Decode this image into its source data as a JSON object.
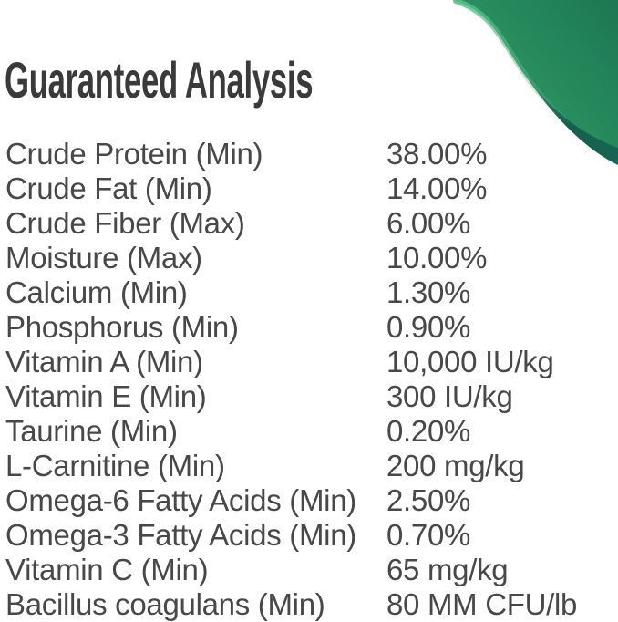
{
  "header": {
    "title": "Guaranteed Analysis"
  },
  "analysis": {
    "rows": [
      {
        "label": "Crude Protein (Min)",
        "value": "38.00%"
      },
      {
        "label": "Crude Fat (Min)",
        "value": "14.00%"
      },
      {
        "label": "Crude Fiber (Max)",
        "value": "6.00%"
      },
      {
        "label": "Moisture (Max)",
        "value": "10.00%"
      },
      {
        "label": "Calcium (Min)",
        "value": "1.30%"
      },
      {
        "label": "Phosphorus (Min)",
        "value": "0.90%"
      },
      {
        "label": "Vitamin A (Min)",
        "value": "10,000 IU/kg"
      },
      {
        "label": "Vitamin E (Min)",
        "value": "300 IU/kg"
      },
      {
        "label": "Taurine (Min)",
        "value": "0.20%"
      },
      {
        "label": "L-Carnitine (Min)",
        "value": "200 mg/kg"
      },
      {
        "label": "Omega-6 Fatty Acids (Min)",
        "value": "2.50%"
      },
      {
        "label": "Omega-3 Fatty Acids (Min)",
        "value": "0.70%"
      },
      {
        "label": "Vitamin C (Min)",
        "value": "65 mg/kg"
      },
      {
        "label": "Bacillus coagulans (Min)",
        "value": "80 MM CFU/lb"
      }
    ]
  },
  "theme": {
    "background": "#ffffff",
    "title_color": "#3a3a3a",
    "text_color": "#484848",
    "swoosh_light_green": "#38a56f",
    "swoosh_mid_green": "#278c5e",
    "swoosh_deep_green": "#1e7853",
    "swoosh_edge_teal": "#0e5446",
    "swoosh_highlight": "#58bf87"
  }
}
